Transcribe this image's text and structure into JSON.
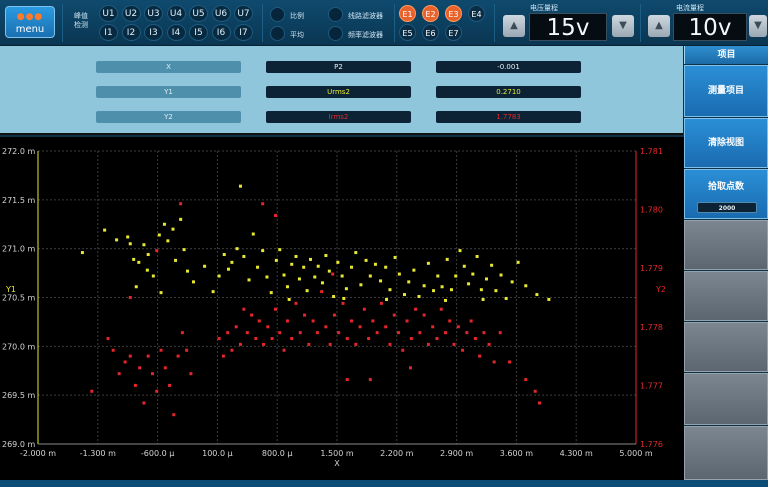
{
  "top_bar": {
    "menu_label": "menu",
    "peak_detect_label": "峰值\n检测",
    "u_buttons": [
      "U1",
      "U2",
      "U3",
      "U4",
      "U5",
      "U6",
      "U7"
    ],
    "i_buttons": [
      "I1",
      "I2",
      "I3",
      "I4",
      "I5",
      "I6",
      "I7"
    ],
    "ratio_label": "比例",
    "average_label": "平均",
    "line_filter_label": "线路滤波器",
    "freq_filter_label": "频率滤波器",
    "e_buttons": [
      {
        "label": "E1",
        "active": true
      },
      {
        "label": "E2",
        "active": true
      },
      {
        "label": "E3",
        "active": true
      },
      {
        "label": "E4",
        "active": false
      },
      {
        "label": "E5",
        "active": false
      },
      {
        "label": "E6",
        "active": false
      },
      {
        "label": "E7",
        "active": false
      }
    ],
    "voltage_range": {
      "title": "电压量程",
      "value": "15v"
    },
    "current_range": {
      "title": "电流量程",
      "value": "10v"
    },
    "up_arrow": "▲",
    "down_arrow": "▼"
  },
  "info_panel": {
    "rows": [
      {
        "label": "X",
        "item": "P2",
        "value": "-0.001",
        "item_color": "#e9f1f6",
        "value_color": "#e9f1f6"
      },
      {
        "label": "Y1",
        "item": "Urms2",
        "value": "0.2710",
        "item_color": "#e8e832",
        "value_color": "#e8e832"
      },
      {
        "label": "Y2",
        "item": "Irms2",
        "value": "1.7783",
        "item_color": "#e5262a",
        "value_color": "#e5262a"
      }
    ]
  },
  "right_panel": {
    "header": "项目",
    "measure_items": "测量项目",
    "clear_view": "清除视图",
    "pick_points": "拾取点数",
    "pick_points_value": "2000"
  },
  "chart_data": {
    "type": "scatter",
    "xlabel": "X",
    "y1label": "Y1",
    "y2label": "Y2",
    "xlim": [
      -2.0,
      5.0
    ],
    "y1lim": [
      269.0,
      272.0
    ],
    "y2lim": [
      1.776,
      1.781
    ],
    "x_ticks": [
      -2.0,
      -1.3,
      -0.6,
      0.1,
      0.8,
      1.5,
      2.2,
      2.9,
      3.6,
      4.3,
      5.0
    ],
    "x_tick_labels": [
      "-2.000 m",
      "-1.300 m",
      "-600.0 µ",
      "100.0 µ",
      "800.0 µ",
      "1.500 m",
      "2.200 m",
      "2.900 m",
      "3.600 m",
      "4.300 m",
      "5.000 m"
    ],
    "y1_ticks": [
      272.0,
      271.5,
      271.0,
      270.5,
      270.0,
      269.5,
      269.0
    ],
    "y1_tick_labels": [
      "272.0 m",
      "271.5 m",
      "271.0 m",
      "270.5 m",
      "270.0 m",
      "269.5 m",
      "269.0 m"
    ],
    "y2_ticks": [
      1.781,
      1.78,
      1.779,
      1.778,
      1.777,
      1.776
    ],
    "y2_tick_labels": [
      "1.781",
      "1.780",
      "1.779",
      "1.778",
      "1.777",
      "1.776"
    ],
    "grid": true,
    "y1_color": "#e8e832",
    "y2_color": "#e5262a",
    "series": [
      {
        "name": "Y1",
        "axis": "y1",
        "color": "#e8e832",
        "points": [
          [
            -1.48,
            270.96
          ],
          [
            -1.22,
            271.19
          ],
          [
            -1.08,
            271.09
          ],
          [
            -0.95,
            271.12
          ],
          [
            -0.92,
            271.05
          ],
          [
            -0.88,
            270.89
          ],
          [
            -0.82,
            270.86
          ],
          [
            -0.76,
            271.04
          ],
          [
            -0.71,
            270.94
          ],
          [
            -0.65,
            270.72
          ],
          [
            -0.58,
            271.14
          ],
          [
            -0.52,
            271.25
          ],
          [
            -0.48,
            271.08
          ],
          [
            -0.42,
            271.2
          ],
          [
            -0.39,
            270.88
          ],
          [
            -0.33,
            271.3
          ],
          [
            -0.29,
            270.99
          ],
          [
            -0.25,
            270.77
          ],
          [
            -0.18,
            270.66
          ],
          [
            -0.56,
            270.55
          ],
          [
            -0.72,
            270.78
          ],
          [
            -0.85,
            270.61
          ],
          [
            0.12,
            270.72
          ],
          [
            0.18,
            270.94
          ],
          [
            0.23,
            270.79
          ],
          [
            0.27,
            270.86
          ],
          [
            0.33,
            271.0
          ],
          [
            0.37,
            271.64
          ],
          [
            0.41,
            270.92
          ],
          [
            0.47,
            270.68
          ],
          [
            0.52,
            271.15
          ],
          [
            0.57,
            270.81
          ],
          [
            0.63,
            270.98
          ],
          [
            0.68,
            270.71
          ],
          [
            0.73,
            270.55
          ],
          [
            0.79,
            270.88
          ],
          [
            0.83,
            270.99
          ],
          [
            0.88,
            270.73
          ],
          [
            0.92,
            270.61
          ],
          [
            0.97,
            270.84
          ],
          [
            1.02,
            270.92
          ],
          [
            1.06,
            270.69
          ],
          [
            1.11,
            270.81
          ],
          [
            1.15,
            270.57
          ],
          [
            1.19,
            270.89
          ],
          [
            1.24,
            270.71
          ],
          [
            1.28,
            270.82
          ],
          [
            1.33,
            270.65
          ],
          [
            1.37,
            270.93
          ],
          [
            1.41,
            270.77
          ],
          [
            1.46,
            270.51
          ],
          [
            1.51,
            270.86
          ],
          [
            1.56,
            270.72
          ],
          [
            1.61,
            270.59
          ],
          [
            1.67,
            270.81
          ],
          [
            1.72,
            270.96
          ],
          [
            1.78,
            270.63
          ],
          [
            1.84,
            270.88
          ],
          [
            1.89,
            270.72
          ],
          [
            1.95,
            270.84
          ],
          [
            2.01,
            270.67
          ],
          [
            2.07,
            270.81
          ],
          [
            2.12,
            270.58
          ],
          [
            2.18,
            270.91
          ],
          [
            2.23,
            270.74
          ],
          [
            2.29,
            270.53
          ],
          [
            2.34,
            270.66
          ],
          [
            2.4,
            270.78
          ],
          [
            2.46,
            270.51
          ],
          [
            2.52,
            270.62
          ],
          [
            2.57,
            270.85
          ],
          [
            2.63,
            270.57
          ],
          [
            2.68,
            270.72
          ],
          [
            2.73,
            270.61
          ],
          [
            2.79,
            270.89
          ],
          [
            2.84,
            270.58
          ],
          [
            2.89,
            270.72
          ],
          [
            2.94,
            270.98
          ],
          [
            2.99,
            270.82
          ],
          [
            3.04,
            270.64
          ],
          [
            3.09,
            270.74
          ],
          [
            3.14,
            270.92
          ],
          [
            3.19,
            270.58
          ],
          [
            3.25,
            270.69
          ],
          [
            3.31,
            270.83
          ],
          [
            3.36,
            270.57
          ],
          [
            3.42,
            270.73
          ],
          [
            3.48,
            270.49
          ],
          [
            3.55,
            270.66
          ],
          [
            3.62,
            270.86
          ],
          [
            3.71,
            270.62
          ],
          [
            3.84,
            270.53
          ],
          [
            3.98,
            270.48
          ],
          [
            0.05,
            270.56
          ],
          [
            -0.05,
            270.82
          ],
          [
            2.08,
            270.48
          ],
          [
            1.58,
            270.49
          ],
          [
            2.77,
            270.47
          ],
          [
            3.21,
            270.48
          ],
          [
            0.94,
            270.48
          ]
        ]
      },
      {
        "name": "Y2",
        "axis": "y2",
        "color": "#e5262a",
        "points": [
          [
            -1.37,
            1.7769
          ],
          [
            -1.18,
            1.7778
          ],
          [
            -1.12,
            1.7776
          ],
          [
            -1.05,
            1.7772
          ],
          [
            -0.98,
            1.7774
          ],
          [
            -0.92,
            1.7775
          ],
          [
            -0.86,
            1.777
          ],
          [
            -0.81,
            1.7773
          ],
          [
            -0.76,
            1.7767
          ],
          [
            -0.71,
            1.7775
          ],
          [
            -0.66,
            1.7772
          ],
          [
            -0.61,
            1.7769
          ],
          [
            -0.56,
            1.7776
          ],
          [
            -0.51,
            1.7773
          ],
          [
            -0.46,
            1.777
          ],
          [
            -0.41,
            1.7765
          ],
          [
            -0.36,
            1.7775
          ],
          [
            -0.31,
            1.7779
          ],
          [
            -0.26,
            1.7776
          ],
          [
            -0.21,
            1.7772
          ],
          [
            -0.92,
            1.7785
          ],
          [
            -0.61,
            1.7793
          ],
          [
            -0.33,
            1.7801
          ],
          [
            0.12,
            1.7778
          ],
          [
            0.17,
            1.7775
          ],
          [
            0.22,
            1.7779
          ],
          [
            0.27,
            1.7776
          ],
          [
            0.32,
            1.778
          ],
          [
            0.37,
            1.7777
          ],
          [
            0.41,
            1.7783
          ],
          [
            0.45,
            1.7779
          ],
          [
            0.5,
            1.7782
          ],
          [
            0.55,
            1.7778
          ],
          [
            0.59,
            1.7781
          ],
          [
            0.64,
            1.7777
          ],
          [
            0.69,
            1.778
          ],
          [
            0.74,
            1.7778
          ],
          [
            0.78,
            1.7783
          ],
          [
            0.83,
            1.7779
          ],
          [
            0.88,
            1.7776
          ],
          [
            0.92,
            1.7781
          ],
          [
            0.97,
            1.7778
          ],
          [
            1.02,
            1.7784
          ],
          [
            1.07,
            1.7779
          ],
          [
            1.12,
            1.7782
          ],
          [
            1.17,
            1.7777
          ],
          [
            1.22,
            1.7781
          ],
          [
            1.27,
            1.7779
          ],
          [
            1.32,
            1.7786
          ],
          [
            1.37,
            1.778
          ],
          [
            1.42,
            1.7777
          ],
          [
            1.47,
            1.7782
          ],
          [
            1.52,
            1.7779
          ],
          [
            1.57,
            1.7784
          ],
          [
            1.62,
            1.7778
          ],
          [
            1.67,
            1.7781
          ],
          [
            1.72,
            1.7777
          ],
          [
            1.77,
            1.778
          ],
          [
            1.82,
            1.7783
          ],
          [
            1.87,
            1.7778
          ],
          [
            1.92,
            1.7781
          ],
          [
            1.97,
            1.7779
          ],
          [
            2.02,
            1.7784
          ],
          [
            2.07,
            1.778
          ],
          [
            2.12,
            1.7777
          ],
          [
            2.17,
            1.7782
          ],
          [
            2.22,
            1.7779
          ],
          [
            2.27,
            1.7776
          ],
          [
            2.32,
            1.7781
          ],
          [
            2.37,
            1.7778
          ],
          [
            2.42,
            1.7783
          ],
          [
            2.47,
            1.7779
          ],
          [
            2.52,
            1.7782
          ],
          [
            2.57,
            1.7777
          ],
          [
            2.62,
            1.778
          ],
          [
            2.67,
            1.7778
          ],
          [
            2.72,
            1.7783
          ],
          [
            2.77,
            1.7779
          ],
          [
            2.82,
            1.7781
          ],
          [
            2.87,
            1.7777
          ],
          [
            2.92,
            1.778
          ],
          [
            2.97,
            1.7776
          ],
          [
            3.02,
            1.7779
          ],
          [
            3.07,
            1.7781
          ],
          [
            3.12,
            1.7778
          ],
          [
            3.17,
            1.7775
          ],
          [
            3.22,
            1.7779
          ],
          [
            3.28,
            1.7777
          ],
          [
            3.34,
            1.7774
          ],
          [
            3.41,
            1.7779
          ],
          [
            3.52,
            1.7774
          ],
          [
            3.71,
            1.7771
          ],
          [
            3.82,
            1.7769
          ],
          [
            3.87,
            1.7767
          ],
          [
            1.89,
            1.7771
          ],
          [
            1.62,
            1.7771
          ],
          [
            2.36,
            1.7773
          ],
          [
            0.63,
            1.7801
          ],
          [
            0.78,
            1.7799
          ],
          [
            1.45,
            1.7789
          ]
        ]
      }
    ]
  }
}
